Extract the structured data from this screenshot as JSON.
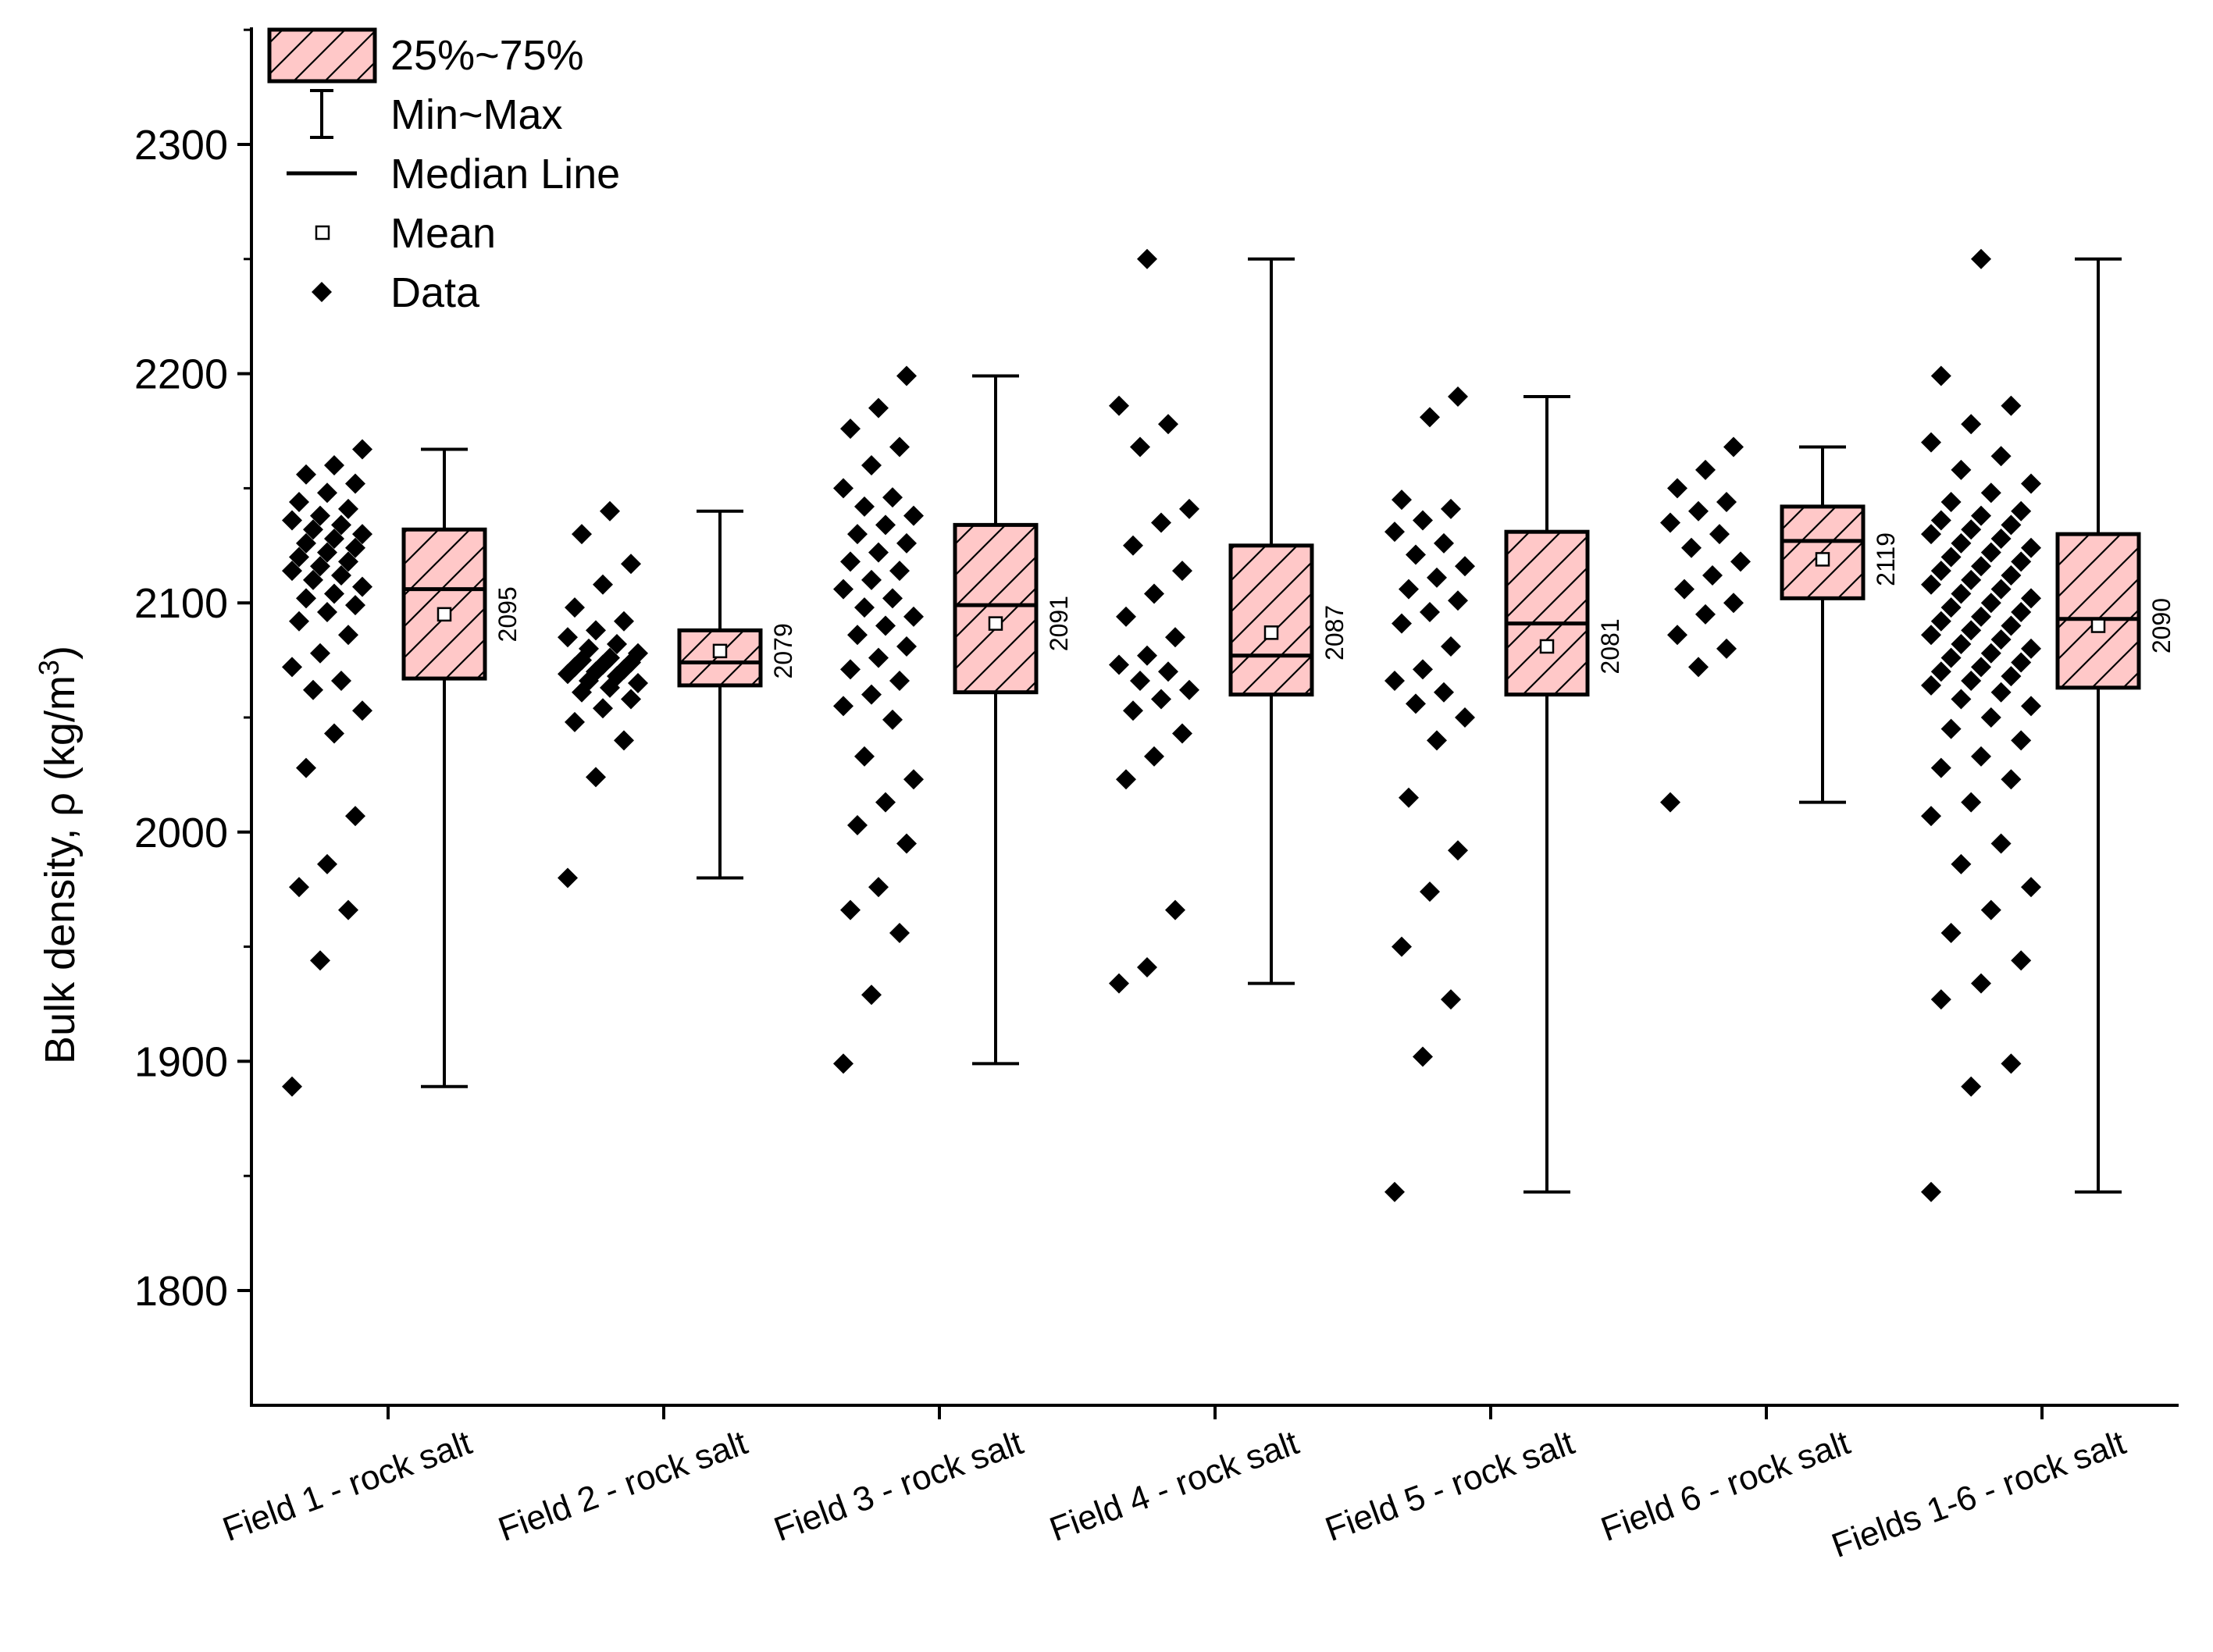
{
  "chart_data": {
    "type": "box",
    "ylabel": "Bulk density, ρ (kg/m",
    "ylabel_sup": "3",
    "ylabel_close": ")",
    "ylim": [
      1750,
      2350
    ],
    "yticks": [
      1800,
      1900,
      2000,
      2100,
      2200,
      2300
    ],
    "ytick_labels": [
      "1800",
      "1900",
      "2000",
      "2100",
      "2200",
      "2300"
    ],
    "grid": false,
    "legend_position": "top-left",
    "legend": [
      {
        "name": "25%~75%",
        "symbol": "box"
      },
      {
        "name": "Min~Max",
        "symbol": "whisker"
      },
      {
        "name": "Median Line",
        "symbol": "line"
      },
      {
        "name": "Mean",
        "symbol": "open-square"
      },
      {
        "name": "Data",
        "symbol": "diamond"
      }
    ],
    "colors": {
      "box_fill": "#ffc8c8",
      "hatch": "#000000",
      "stroke": "#000000"
    },
    "categories": [
      "Field 1 - rock salt",
      "Field 2 - rock salt",
      "Field 3 - rock salt",
      "Field 4 - rock salt",
      "Field 5 - rock salt",
      "Field 6 - rock salt",
      "Fields 1-6 - rock salt"
    ],
    "boxes": [
      {
        "min": 1889,
        "q1": 2067,
        "median": 2106,
        "q3": 2132,
        "max": 2167,
        "mean": 2095,
        "mean_label": "2095"
      },
      {
        "min": 1980,
        "q1": 2064,
        "median": 2074,
        "q3": 2088,
        "max": 2140,
        "mean": 2079,
        "mean_label": "2079"
      },
      {
        "min": 1899,
        "q1": 2061,
        "median": 2099,
        "q3": 2134,
        "max": 2199,
        "mean": 2091,
        "mean_label": "2091"
      },
      {
        "min": 1934,
        "q1": 2060,
        "median": 2077,
        "q3": 2125,
        "max": 2250,
        "mean": 2087,
        "mean_label": "2087"
      },
      {
        "min": 1843,
        "q1": 2060,
        "median": 2091,
        "q3": 2131,
        "max": 2190,
        "mean": 2081,
        "mean_label": "2081"
      },
      {
        "min": 2013,
        "q1": 2102,
        "median": 2127,
        "q3": 2142,
        "max": 2168,
        "mean": 2119,
        "mean_label": "2119"
      },
      {
        "min": 1843,
        "q1": 2063,
        "median": 2093,
        "q3": 2130,
        "max": 2250,
        "mean": 2090,
        "mean_label": "2090"
      }
    ],
    "data_points": [
      [
        1889,
        1944,
        1966,
        1976,
        1986,
        2007,
        2028,
        2043,
        2053,
        2062,
        2066,
        2072,
        2078,
        2086,
        2092,
        2096,
        2099,
        2102,
        2104,
        2107,
        2110,
        2112,
        2114,
        2116,
        2118,
        2120,
        2122,
        2124,
        2126,
        2128,
        2130,
        2132,
        2134,
        2136,
        2138,
        2141,
        2144,
        2148,
        2152,
        2156,
        2160,
        2167
      ],
      [
        1980,
        2024,
        2040,
        2048,
        2054,
        2058,
        2061,
        2063,
        2065,
        2066,
        2068,
        2069,
        2070,
        2071,
        2072,
        2073,
        2074,
        2075,
        2076,
        2078,
        2080,
        2082,
        2085,
        2088,
        2092,
        2098,
        2108,
        2117,
        2130,
        2140
      ],
      [
        1899,
        1929,
        1956,
        1966,
        1976,
        1995,
        2003,
        2013,
        2023,
        2033,
        2049,
        2055,
        2060,
        2066,
        2071,
        2076,
        2081,
        2086,
        2090,
        2094,
        2098,
        2102,
        2106,
        2110,
        2114,
        2118,
        2122,
        2126,
        2130,
        2134,
        2138,
        2142,
        2146,
        2150,
        2160,
        2168,
        2176,
        2185,
        2199
      ],
      [
        1934,
        1941,
        1966,
        2023,
        2033,
        2043,
        2053,
        2058,
        2062,
        2066,
        2070,
        2073,
        2077,
        2085,
        2094,
        2104,
        2114,
        2125,
        2135,
        2141,
        2168,
        2178,
        2186,
        2250
      ],
      [
        1843,
        1902,
        1927,
        1950,
        1974,
        1992,
        2015,
        2040,
        2050,
        2056,
        2061,
        2066,
        2071,
        2081,
        2091,
        2096,
        2101,
        2106,
        2111,
        2116,
        2121,
        2126,
        2131,
        2136,
        2141,
        2145,
        2181,
        2190
      ],
      [
        2013,
        2072,
        2080,
        2086,
        2095,
        2100,
        2106,
        2112,
        2118,
        2124,
        2130,
        2135,
        2140,
        2144,
        2150,
        2158,
        2168
      ],
      [
        1843,
        1889,
        1899,
        1927,
        1934,
        1944,
        1956,
        1966,
        1976,
        1986,
        1995,
        2007,
        2013,
        2023,
        2028,
        2033,
        2040,
        2045,
        2050,
        2055,
        2058,
        2061,
        2064,
        2066,
        2068,
        2070,
        2072,
        2074,
        2076,
        2078,
        2080,
        2082,
        2084,
        2086,
        2088,
        2090,
        2092,
        2094,
        2096,
        2098,
        2100,
        2102,
        2104,
        2106,
        2108,
        2110,
        2112,
        2114,
        2116,
        2118,
        2120,
        2122,
        2124,
        2126,
        2128,
        2130,
        2132,
        2134,
        2136,
        2138,
        2140,
        2144,
        2148,
        2152,
        2158,
        2164,
        2170,
        2178,
        2186,
        2199,
        2250
      ]
    ]
  }
}
